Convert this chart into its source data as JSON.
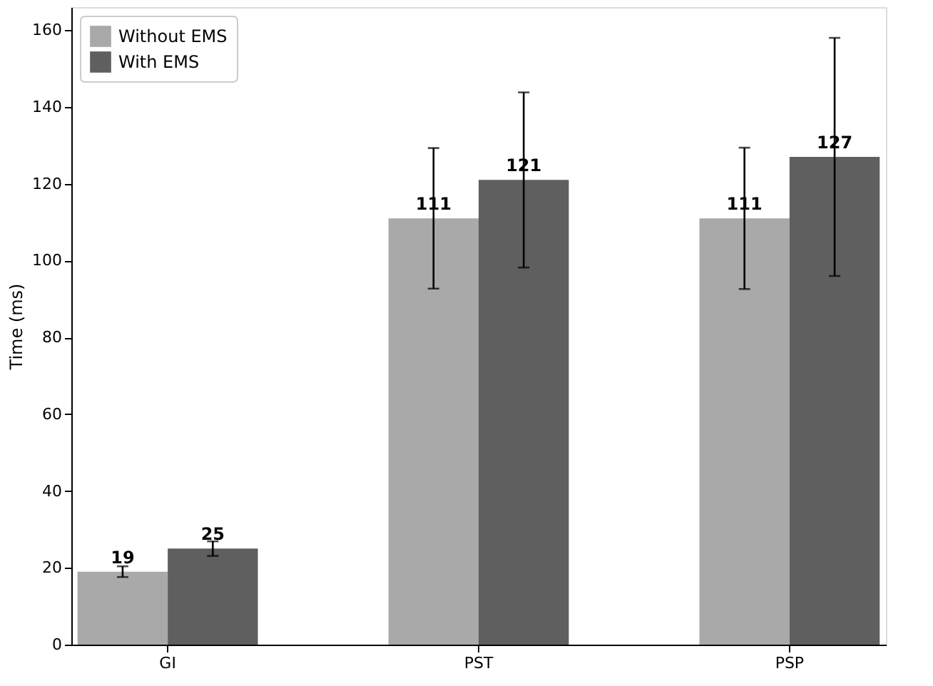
{
  "chart_data": {
    "type": "bar",
    "ylabel": "Time (ms)",
    "categories": [
      "GI",
      "PST",
      "PSP"
    ],
    "series": [
      {
        "name": "Without EMS",
        "color": "#a9a9a9",
        "values": [
          19,
          111,
          111
        ],
        "errors": [
          1.4,
          18.3,
          18.4
        ]
      },
      {
        "name": "With EMS",
        "color": "#5f5f5f",
        "values": [
          25,
          121,
          127
        ],
        "errors": [
          1.9,
          22.8,
          31
        ]
      }
    ],
    "ylim": [
      0,
      166
    ],
    "yticks": [
      0,
      20,
      40,
      60,
      80,
      100,
      120,
      140,
      160
    ],
    "data_labels": true,
    "legend": "top left",
    "grid": false
  }
}
